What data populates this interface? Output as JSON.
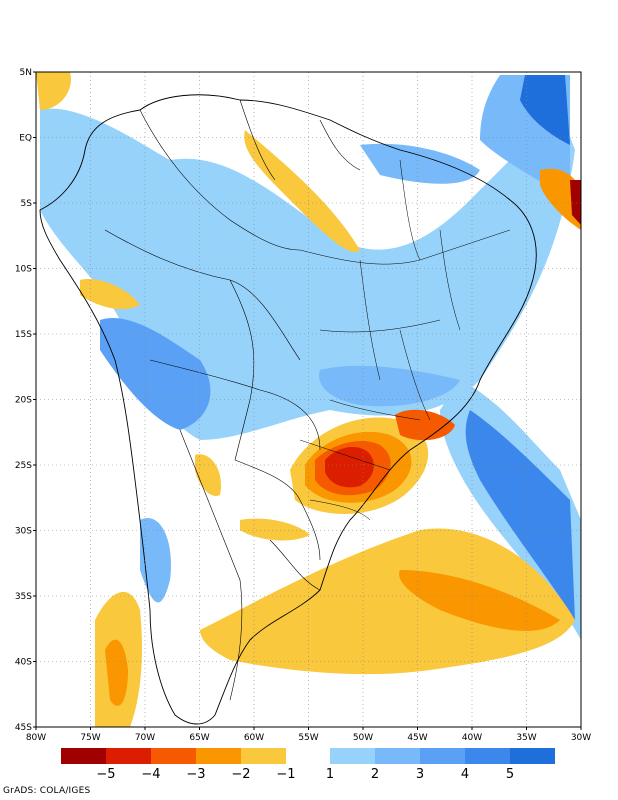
{
  "map": {
    "lat_ticks": [
      "5N",
      "EQ",
      "5S",
      "10S",
      "15S",
      "20S",
      "25S",
      "30S",
      "35S",
      "40S",
      "45S"
    ],
    "lon_ticks": [
      "80W",
      "75W",
      "70W",
      "65W",
      "60W",
      "55W",
      "50W",
      "45W",
      "40W",
      "35W",
      "30W"
    ],
    "lon_range": [
      -80,
      -30
    ],
    "lat_range": [
      -45,
      5
    ],
    "grid": true,
    "grid_style": "dotted"
  },
  "colorbar": {
    "negative_labels": [
      "−5",
      "−4",
      "−3",
      "−2",
      "−1"
    ],
    "positive_labels": [
      "1",
      "2",
      "3",
      "4",
      "5"
    ],
    "negative_colors": [
      "#a00000",
      "#dc1e00",
      "#f55a00",
      "#fa9600",
      "#fac83c"
    ],
    "positive_colors": [
      "#96d2fa",
      "#78b9fa",
      "#5aa0f5",
      "#3c87eb",
      "#1e6edc"
    ]
  },
  "colors": {
    "orange": "#fac83c",
    "orange2": "#fa9600",
    "orange3": "#f55a00",
    "red": "#dc1e00",
    "darkred": "#a00000",
    "blue1": "#96d2fa",
    "blue2": "#78b9fa",
    "blue3": "#5aa0f5",
    "blue4": "#3c87eb",
    "blue5": "#1e6edc"
  },
  "credit": "GrADS: COLA/IGES"
}
